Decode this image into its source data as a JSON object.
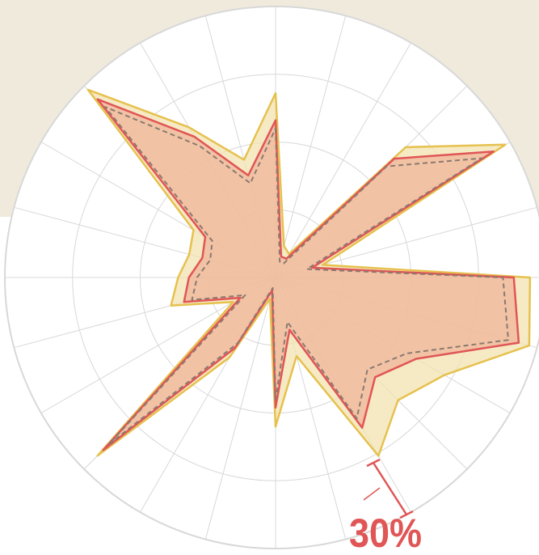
{
  "chart_data": {
    "type": "radar",
    "categories": [
      null,
      null,
      null,
      null,
      null,
      null,
      null,
      null,
      null,
      null,
      null,
      null,
      null,
      null,
      null,
      null,
      null,
      null,
      null,
      null,
      null,
      null,
      null,
      null
    ],
    "rlim": [
      0,
      100
    ],
    "rticks": [
      25,
      50,
      75,
      100
    ],
    "grid": true,
    "series": [
      {
        "color": "#e6c14f",
        "fill": "#f3e3b0",
        "values": [
          68,
          12,
          10,
          68,
          98,
          18,
          94,
          97,
          72,
          64,
          76,
          30,
          55,
          8,
          34,
          93,
          18,
          40,
          36,
          33,
          35,
          98,
          64,
          45
        ]
      },
      {
        "color": "#e05656",
        "fill": "#f0b49a",
        "values": [
          58,
          8,
          8,
          62,
          93,
          14,
          88,
          93,
          60,
          52,
          64,
          20,
          48,
          5,
          30,
          90,
          15,
          35,
          32,
          28,
          30,
          93,
          60,
          39
        ]
      },
      {
        "color": "#8a7a70",
        "dash": true,
        "values": [
          55,
          6,
          6,
          58,
          88,
          12,
          84,
          89,
          56,
          48,
          60,
          17,
          45,
          4,
          28,
          87,
          13,
          32,
          29,
          25,
          27,
          89,
          56,
          36
        ]
      }
    ],
    "annotation": "30%"
  }
}
